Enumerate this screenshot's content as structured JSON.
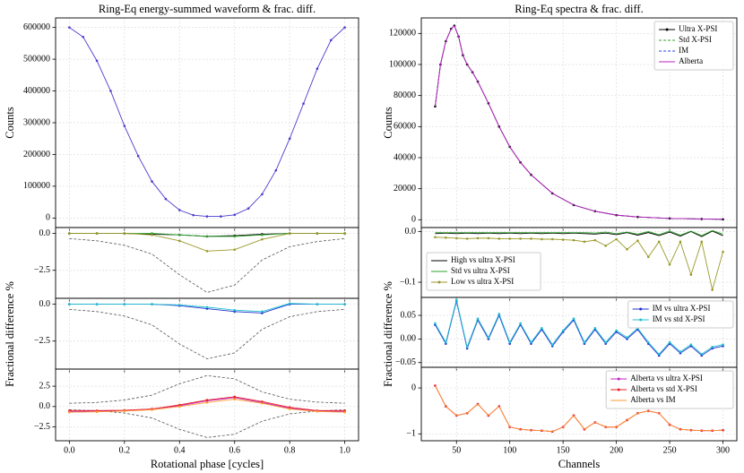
{
  "chart_data": [
    {
      "type": "line",
      "title": "Ring-Eq energy-summed waveform & frac. diff.",
      "ylabel": "Counts",
      "xlim": [
        -0.05,
        1.05
      ],
      "ylim": [
        -30000,
        630000
      ],
      "yticks": [
        0,
        100000,
        200000,
        300000,
        400000,
        500000,
        600000
      ],
      "grid": true,
      "x": [
        0,
        0.05,
        0.1,
        0.15,
        0.2,
        0.25,
        0.3,
        0.35,
        0.4,
        0.45,
        0.5,
        0.55,
        0.6,
        0.65,
        0.7,
        0.75,
        0.8,
        0.85,
        0.9,
        0.95,
        1.0
      ],
      "series": [
        {
          "color": "#4b3ccf",
          "marker": true,
          "values": [
            600000,
            570000,
            495000,
            400000,
            290000,
            195000,
            115000,
            60000,
            25000,
            9000,
            5000,
            5000,
            10000,
            30000,
            75000,
            150000,
            250000,
            360000,
            470000,
            560000,
            600000
          ]
        }
      ]
    },
    {
      "type": "line",
      "ylabel": "Fractional difference %",
      "xlim": [
        -0.05,
        1.05
      ],
      "ylim": [
        -4.4,
        0.4
      ],
      "yticks": [
        {
          "value": 0,
          "label": "0.0"
        },
        {
          "value": -2.5,
          "label": "−2.5"
        }
      ],
      "grid": true,
      "x": [
        0,
        0.1,
        0.2,
        0.3,
        0.4,
        0.5,
        0.6,
        0.7,
        0.8,
        0.9,
        1.0
      ],
      "series": [
        {
          "color": "#555555",
          "linestyle": "dashed",
          "values": [
            -0.35,
            -0.5,
            -0.8,
            -1.4,
            -2.8,
            -4.0,
            -3.5,
            -1.8,
            -0.9,
            -0.55,
            -0.35
          ]
        },
        {
          "color": "#000000",
          "marker": true,
          "values": [
            0,
            0,
            0,
            -0.05,
            -0.1,
            -0.2,
            -0.15,
            -0.05,
            0,
            0,
            0
          ]
        },
        {
          "color": "#2ca02c",
          "marker": true,
          "values": [
            0,
            0,
            0,
            0,
            -0.1,
            -0.2,
            -0.2,
            -0.1,
            0,
            0,
            0
          ]
        },
        {
          "color": "#9a9a2a",
          "marker": true,
          "values": [
            0,
            0,
            0,
            -0.1,
            -0.5,
            -1.2,
            -1.1,
            -0.4,
            0,
            0,
            0
          ]
        }
      ]
    },
    {
      "type": "line",
      "xlim": [
        -0.05,
        1.05
      ],
      "ylim": [
        -4.4,
        0.4
      ],
      "yticks": [
        {
          "value": 0,
          "label": "0.0"
        },
        {
          "value": -2.5,
          "label": "−2.5"
        }
      ],
      "grid": true,
      "x": [
        0,
        0.1,
        0.2,
        0.3,
        0.4,
        0.5,
        0.6,
        0.7,
        0.8,
        0.9,
        1.0
      ],
      "series": [
        {
          "color": "#555555",
          "linestyle": "dashed",
          "values": [
            -0.35,
            -0.5,
            -0.8,
            -1.4,
            -2.7,
            -3.7,
            -3.3,
            -1.7,
            -0.85,
            -0.5,
            -0.35
          ]
        },
        {
          "color": "#2030d0",
          "marker": true,
          "values": [
            0,
            0,
            0,
            0,
            -0.1,
            -0.3,
            -0.5,
            -0.6,
            0,
            0,
            0
          ]
        },
        {
          "color": "#20c0d0",
          "marker": true,
          "values": [
            0,
            0,
            0,
            0,
            -0.05,
            -0.2,
            -0.4,
            -0.5,
            0.05,
            0,
            0
          ]
        }
      ]
    },
    {
      "type": "line",
      "xlabel": "Rotational phase [cycles]",
      "xlim": [
        -0.05,
        1.05
      ],
      "ylim": [
        -4.2,
        4.6
      ],
      "xticks": [
        {
          "value": 0,
          "label": "0.0"
        },
        0.2,
        0.4,
        0.6,
        0.8,
        {
          "value": 1,
          "label": "1.0"
        }
      ],
      "yticks": [
        2.5,
        {
          "value": 0,
          "label": "0.0"
        },
        {
          "value": -2.5,
          "label": "−2.5"
        }
      ],
      "grid": true,
      "x": [
        0,
        0.1,
        0.2,
        0.3,
        0.4,
        0.5,
        0.6,
        0.7,
        0.8,
        0.9,
        1.0
      ],
      "series": [
        {
          "color": "#555555",
          "linestyle": "dashed",
          "values": [
            0.4,
            0.5,
            0.8,
            1.4,
            2.8,
            3.8,
            3.4,
            1.8,
            0.9,
            0.55,
            0.4
          ]
        },
        {
          "color": "#555555",
          "linestyle": "dashed",
          "values": [
            -0.4,
            -0.5,
            -0.8,
            -1.4,
            -2.8,
            -3.8,
            -3.4,
            -1.8,
            -0.9,
            -0.55,
            -0.4
          ]
        },
        {
          "color": "#c020c0",
          "marker": true,
          "values": [
            -0.6,
            -0.55,
            -0.5,
            -0.3,
            0.1,
            0.7,
            1.1,
            0.5,
            -0.2,
            -0.55,
            -0.6
          ]
        },
        {
          "color": "#e8202a",
          "marker": true,
          "values": [
            -0.5,
            -0.5,
            -0.45,
            -0.3,
            0.2,
            0.8,
            1.2,
            0.6,
            -0.1,
            -0.5,
            -0.5
          ]
        },
        {
          "color": "#ff9a30",
          "marker": true,
          "values": [
            -0.7,
            -0.65,
            -0.55,
            -0.4,
            0.0,
            0.5,
            0.9,
            0.4,
            -0.3,
            -0.6,
            -0.7
          ]
        }
      ]
    },
    {
      "type": "line",
      "title": "Ring-Eq spectra & frac. diff.",
      "ylabel": "Counts",
      "legend": "upper right",
      "xlim": [
        17,
        313
      ],
      "ylim": [
        -5000,
        130000
      ],
      "yticks": [
        0,
        20000,
        40000,
        60000,
        80000,
        100000,
        120000
      ],
      "grid": true,
      "x": [
        30,
        35,
        40,
        45,
        48,
        52,
        56,
        60,
        65,
        70,
        80,
        90,
        100,
        110,
        120,
        140,
        160,
        180,
        200,
        220,
        250,
        280,
        300
      ],
      "series": [
        {
          "name": "Ultra X-PSI",
          "color": "#000000",
          "marker": true,
          "values": [
            73000,
            100000,
            115000,
            123000,
            125000,
            118000,
            106000,
            100000,
            95000,
            89000,
            75000,
            60000,
            47000,
            37000,
            29000,
            17000,
            9500,
            5500,
            3000,
            1800,
            900,
            500,
            300
          ]
        },
        {
          "name": "Std X-PSI",
          "color": "#2ca02c",
          "linestyle": "dashed",
          "values": [
            73000,
            100000,
            115000,
            123000,
            125000,
            118000,
            106000,
            100000,
            95000,
            89000,
            75000,
            60000,
            47000,
            37000,
            29000,
            17000,
            9500,
            5500,
            3000,
            1800,
            900,
            500,
            300
          ]
        },
        {
          "name": "IM",
          "color": "#1f3fdc",
          "linestyle": "dashed",
          "values": [
            73000,
            100000,
            115000,
            123000,
            125000,
            118000,
            106000,
            100000,
            95000,
            89000,
            75000,
            60000,
            47000,
            37000,
            29000,
            17000,
            9500,
            5500,
            3000,
            1800,
            900,
            500,
            300
          ]
        },
        {
          "name": "Alberta",
          "color": "#c020c0",
          "values": [
            73000,
            100000,
            115000,
            123000,
            125000,
            118000,
            106000,
            100000,
            95000,
            89000,
            75000,
            60000,
            47000,
            37000,
            29000,
            17000,
            9500,
            5500,
            3000,
            1800,
            900,
            500,
            300
          ]
        }
      ]
    },
    {
      "type": "line",
      "ylabel": "Fractional difference %",
      "legend": "center left",
      "xlim": [
        17,
        313
      ],
      "ylim": [
        -0.13,
        0.008
      ],
      "yticks": [
        {
          "value": 0,
          "label": "0.0"
        },
        {
          "value": -0.1,
          "label": "−0.1"
        }
      ],
      "grid": true,
      "x": [
        30,
        40,
        50,
        60,
        70,
        80,
        90,
        100,
        110,
        120,
        130,
        140,
        150,
        160,
        170,
        180,
        190,
        200,
        210,
        220,
        230,
        240,
        250,
        260,
        270,
        280,
        290,
        300
      ],
      "series": [
        {
          "name": "High vs ultra X-PSI",
          "color": "#000000",
          "values": [
            -0.004,
            -0.003,
            -0.004,
            -0.003,
            -0.004,
            -0.003,
            -0.004,
            -0.003,
            -0.004,
            -0.003,
            -0.004,
            -0.003,
            -0.004,
            -0.003,
            -0.004,
            -0.005,
            -0.003,
            -0.006,
            -0.002,
            -0.007,
            -0.002,
            -0.008,
            -0.001,
            -0.009,
            0.0,
            -0.01,
            0.001,
            -0.008
          ]
        },
        {
          "name": "Std vs ultra X-PSI",
          "color": "#2ca02c",
          "values": [
            -0.002,
            -0.002,
            -0.002,
            -0.002,
            -0.002,
            -0.002,
            -0.002,
            -0.002,
            -0.002,
            -0.002,
            -0.002,
            -0.002,
            -0.002,
            -0.002,
            -0.002,
            -0.003,
            -0.001,
            -0.004,
            -0.001,
            -0.005,
            0.0,
            -0.006,
            0.001,
            -0.007,
            0.001,
            -0.008,
            0.002,
            -0.005
          ]
        },
        {
          "name": "Low vs ultra X-PSI",
          "color": "#9a9a2a",
          "marker": true,
          "values": [
            -0.011,
            -0.012,
            -0.013,
            -0.014,
            -0.013,
            -0.013,
            -0.014,
            -0.014,
            -0.014,
            -0.014,
            -0.015,
            -0.015,
            -0.016,
            -0.017,
            -0.02,
            -0.017,
            -0.028,
            -0.015,
            -0.035,
            -0.018,
            -0.05,
            -0.02,
            -0.065,
            -0.02,
            -0.085,
            -0.02,
            -0.115,
            -0.04
          ]
        }
      ]
    },
    {
      "type": "line",
      "legend": "upper right",
      "xlim": [
        17,
        313
      ],
      "ylim": [
        -0.06,
        0.088
      ],
      "yticks": [
        0.05,
        {
          "value": 0,
          "label": "0.00"
        },
        {
          "value": -0.05,
          "label": "−0.05"
        }
      ],
      "grid": true,
      "x": [
        30,
        40,
        50,
        60,
        70,
        80,
        90,
        100,
        110,
        120,
        130,
        140,
        150,
        160,
        170,
        180,
        190,
        200,
        210,
        220,
        230,
        240,
        250,
        260,
        270,
        280,
        290,
        300
      ],
      "series": [
        {
          "name": "IM vs ultra X-PSI",
          "color": "#2030d0",
          "marker": true,
          "values": [
            0.03,
            -0.01,
            0.08,
            -0.02,
            0.04,
            0.0,
            0.05,
            -0.01,
            0.03,
            -0.01,
            0.02,
            -0.015,
            0.015,
            0.04,
            -0.01,
            0.02,
            -0.01,
            0.015,
            0.0,
            0.02,
            -0.01,
            -0.035,
            -0.01,
            -0.03,
            -0.015,
            -0.035,
            -0.02,
            -0.015
          ]
        },
        {
          "name": "IM vs std X-PSI",
          "color": "#20c0d0",
          "marker": true,
          "values": [
            0.033,
            -0.007,
            0.083,
            -0.017,
            0.043,
            0.003,
            0.053,
            -0.007,
            0.033,
            -0.007,
            0.023,
            -0.012,
            0.018,
            0.043,
            -0.007,
            0.023,
            -0.007,
            0.018,
            0.003,
            0.023,
            -0.007,
            -0.032,
            -0.007,
            -0.027,
            -0.012,
            -0.032,
            -0.017,
            -0.012
          ]
        }
      ]
    },
    {
      "type": "line",
      "xlabel": "Channels",
      "legend": "upper right",
      "xlim": [
        17,
        313
      ],
      "ylim": [
        -1.15,
        0.45
      ],
      "xticks": [
        50,
        100,
        150,
        200,
        250,
        300
      ],
      "yticks": [
        0,
        {
          "value": -1,
          "label": "−1"
        }
      ],
      "grid": true,
      "x": [
        30,
        40,
        50,
        60,
        70,
        80,
        90,
        100,
        110,
        120,
        130,
        140,
        150,
        160,
        170,
        180,
        190,
        200,
        210,
        220,
        230,
        240,
        250,
        260,
        270,
        280,
        290,
        300
      ],
      "series": [
        {
          "name": "Alberta vs ultra X-PSI",
          "color": "#c020c0",
          "marker": true,
          "values": [
            0.05,
            -0.4,
            -0.6,
            -0.55,
            -0.35,
            -0.6,
            -0.4,
            -0.85,
            -0.9,
            -0.92,
            -0.93,
            -0.95,
            -0.85,
            -0.6,
            -0.9,
            -0.75,
            -0.85,
            -0.85,
            -0.7,
            -0.55,
            -0.5,
            -0.55,
            -0.8,
            -0.9,
            -0.92,
            -0.93,
            -0.93,
            -0.92
          ]
        },
        {
          "name": "Alberta vs std X-PSI",
          "color": "#e8202a",
          "marker": true,
          "values": [
            0.05,
            -0.4,
            -0.6,
            -0.55,
            -0.35,
            -0.6,
            -0.4,
            -0.85,
            -0.9,
            -0.92,
            -0.93,
            -0.95,
            -0.85,
            -0.6,
            -0.9,
            -0.75,
            -0.85,
            -0.85,
            -0.7,
            -0.55,
            -0.5,
            -0.55,
            -0.8,
            -0.9,
            -0.92,
            -0.93,
            -0.93,
            -0.92
          ]
        },
        {
          "name": "Alberta vs IM",
          "color": "#ff9a30",
          "values": [
            0.05,
            -0.4,
            -0.6,
            -0.55,
            -0.35,
            -0.6,
            -0.4,
            -0.85,
            -0.9,
            -0.92,
            -0.93,
            -0.95,
            -0.85,
            -0.6,
            -0.9,
            -0.75,
            -0.85,
            -0.85,
            -0.7,
            -0.55,
            -0.5,
            -0.55,
            -0.8,
            -0.9,
            -0.92,
            -0.93,
            -0.93,
            -0.92
          ]
        }
      ]
    }
  ]
}
